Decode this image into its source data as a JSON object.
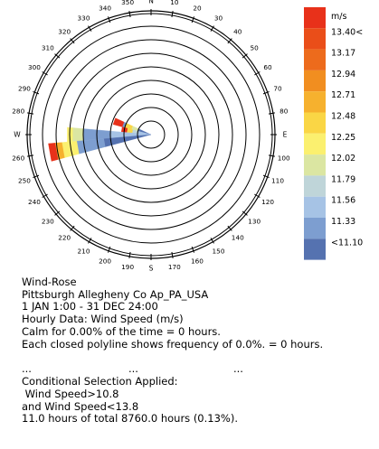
{
  "chart_data": {
    "type": "wind-rose",
    "title": "Wind-Rose",
    "station": "Pittsburgh Allegheny Co Ap_PA_USA",
    "period": "1 JAN 1:00 - 31 DEC 24:00",
    "variable": "Hourly Data: Wind Speed (m/s)",
    "compass_labels": {
      "north": "N",
      "east": "E",
      "south": "S",
      "west": "W"
    },
    "direction_ticks": [
      "10",
      "20",
      "30",
      "40",
      "50",
      "60",
      "70",
      "80",
      "100",
      "110",
      "120",
      "130",
      "140",
      "150",
      "160",
      "170",
      "190",
      "200",
      "210",
      "220",
      "230",
      "240",
      "250",
      "260",
      "280",
      "290",
      "300",
      "310",
      "320",
      "330",
      "340",
      "350"
    ],
    "legend": {
      "unit": "m/s",
      "labels": [
        "13.40<",
        "13.17",
        "12.94",
        "12.71",
        "12.48",
        "12.25",
        "12.02",
        "11.79",
        "11.56",
        "11.33",
        "<11.10"
      ],
      "colors": [
        "#e8311a",
        "#ea4e19",
        "#ed6b1c",
        "#f18e20",
        "#f6b12e",
        "#fad645",
        "#fbf06f",
        "#dbe6a2",
        "#bfd5d9",
        "#a6c3e5",
        "#7d9ed0",
        "#5572b0"
      ]
    },
    "rings": 8,
    "bins": [
      {
        "direction": 290,
        "frequency_rings": [
          1,
          1.5,
          2,
          2.2,
          2.9
        ]
      },
      {
        "direction": 280,
        "frequency_rings": [
          1,
          1.4,
          1.8,
          2.2
        ]
      },
      {
        "direction": 270,
        "frequency_rings": [
          3,
          5,
          5.8,
          6.2
        ]
      },
      {
        "direction": 260,
        "frequency_rings": [
          3.5,
          5.5,
          6.6,
          7.1,
          7.6
        ]
      }
    ]
  },
  "text": {
    "calm": "Calm for 0.00% of the time = 0 hours.",
    "polyline_note": "Each closed polyline shows frequency of 0.0%. = 0 hours.",
    "ellipsis": [
      "...",
      "...",
      "..."
    ],
    "conditional_title": "Conditional Selection Applied:",
    "condition_1": " Wind Speed>10.8",
    "condition_2": "and Wind Speed<13.8",
    "summary": "11.0 hours of total 8760.0 hours (0.13%)."
  }
}
